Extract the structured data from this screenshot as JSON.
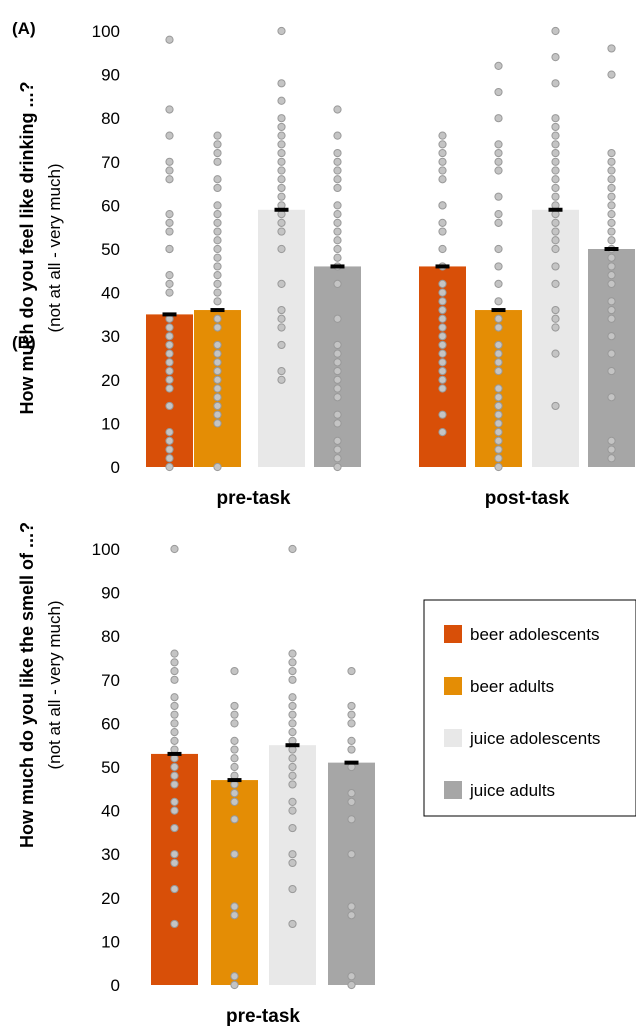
{
  "colors": {
    "beer_adolescents": "#d84f08",
    "beer_adults": "#e48d05",
    "juice_adolescents": "#e8e8e8",
    "juice_adults": "#a6a6a6",
    "dot_fill": "#c4c4c4",
    "dot_stroke": "#999999",
    "mean_bar": "#000000"
  },
  "legend": {
    "items": [
      {
        "label": "beer adolescents",
        "color_key": "beer_adolescents"
      },
      {
        "label": "beer adults",
        "color_key": "beer_adults"
      },
      {
        "label": "juice adolescents",
        "color_key": "juice_adolescents"
      },
      {
        "label": "juice adults",
        "color_key": "juice_adults"
      }
    ]
  },
  "chart_data": [
    {
      "type": "bar",
      "panel_label": "(A)",
      "ylabel": "How much do you feel like drinking ...?",
      "ylabel_sub": "(not at all - very much)",
      "ylim": [
        0,
        100
      ],
      "yticks": [
        0,
        10,
        20,
        30,
        40,
        50,
        60,
        70,
        80,
        90,
        100
      ],
      "categories": [
        "pre-task",
        "post-task"
      ],
      "series": [
        {
          "name": "beer adolescents",
          "color_key": "beer_adolescents",
          "values": [
            35,
            46
          ],
          "points": [
            [
              0,
              2,
              4,
              6,
              8,
              14,
              18,
              20,
              22,
              24,
              26,
              28,
              30,
              32,
              34,
              40,
              42,
              44,
              50,
              50,
              54,
              56,
              58,
              66,
              68,
              70,
              76,
              82,
              98
            ],
            [
              8,
              12,
              18,
              20,
              22,
              24,
              26,
              28,
              30,
              32,
              34,
              36,
              38,
              40,
              42,
              46,
              50,
              54,
              56,
              60,
              60,
              66,
              68,
              70,
              72,
              74,
              76
            ]
          ]
        },
        {
          "name": "beer adults",
          "color_key": "beer_adults",
          "values": [
            36,
            36
          ],
          "points": [
            [
              0,
              10,
              12,
              14,
              16,
              18,
              20,
              22,
              24,
              26,
              28,
              32,
              34,
              38,
              40,
              42,
              44,
              46,
              48,
              50,
              52,
              54,
              56,
              58,
              60,
              64,
              66,
              70,
              72,
              74,
              76
            ],
            [
              0,
              2,
              4,
              6,
              8,
              10,
              12,
              14,
              16,
              18,
              22,
              24,
              26,
              28,
              32,
              34,
              38,
              42,
              46,
              50,
              56,
              58,
              62,
              68,
              70,
              72,
              74,
              80,
              86,
              92
            ]
          ]
        },
        {
          "name": "juice adolescents",
          "color_key": "juice_adolescents",
          "values": [
            59,
            59
          ],
          "points": [
            [
              20,
              22,
              28,
              32,
              34,
              36,
              42,
              50,
              54,
              56,
              58,
              60,
              62,
              64,
              66,
              68,
              70,
              72,
              74,
              76,
              78,
              80,
              84,
              88,
              100
            ],
            [
              14,
              26,
              32,
              34,
              36,
              42,
              46,
              50,
              52,
              54,
              56,
              58,
              60,
              62,
              64,
              66,
              68,
              70,
              72,
              74,
              76,
              78,
              80,
              88,
              94,
              100
            ]
          ]
        },
        {
          "name": "juice adults",
          "color_key": "juice_adults",
          "values": [
            46,
            50
          ],
          "points": [
            [
              0,
              2,
              4,
              6,
              10,
              12,
              16,
              18,
              20,
              22,
              24,
              26,
              28,
              34,
              42,
              46,
              48,
              50,
              52,
              54,
              56,
              58,
              60,
              64,
              66,
              68,
              70,
              72,
              76,
              82
            ],
            [
              2,
              4,
              6,
              16,
              22,
              26,
              30,
              34,
              36,
              38,
              42,
              44,
              46,
              48,
              50,
              52,
              54,
              56,
              58,
              60,
              62,
              64,
              66,
              68,
              70,
              72,
              90,
              96
            ]
          ]
        }
      ]
    },
    {
      "type": "bar",
      "panel_label": "(B)",
      "ylabel": "How much do you like the smell of ...?",
      "ylabel_sub": "(not at all - very much)",
      "ylim": [
        0,
        100
      ],
      "yticks": [
        0,
        10,
        20,
        30,
        40,
        50,
        60,
        70,
        80,
        90,
        100
      ],
      "categories": [
        "pre-task"
      ],
      "series": [
        {
          "name": "beer adolescents",
          "color_key": "beer_adolescents",
          "values": [
            53
          ],
          "points": [
            [
              14,
              22,
              28,
              30,
              36,
              40,
              42,
              46,
              48,
              50,
              52,
              54,
              56,
              58,
              60,
              62,
              64,
              66,
              70,
              72,
              74,
              76,
              100
            ]
          ]
        },
        {
          "name": "beer adults",
          "color_key": "beer_adults",
          "values": [
            47
          ],
          "points": [
            [
              0,
              2,
              16,
              18,
              30,
              38,
              42,
              44,
              46,
              48,
              50,
              52,
              54,
              56,
              60,
              62,
              64,
              72
            ]
          ]
        },
        {
          "name": "juice adolescents",
          "color_key": "juice_adolescents",
          "values": [
            55
          ],
          "points": [
            [
              14,
              22,
              28,
              30,
              36,
              40,
              42,
              46,
              48,
              50,
              52,
              54,
              56,
              58,
              60,
              62,
              64,
              66,
              70,
              72,
              74,
              76,
              100
            ]
          ]
        },
        {
          "name": "juice adults",
          "color_key": "juice_adults",
          "values": [
            51
          ],
          "points": [
            [
              0,
              2,
              16,
              18,
              30,
              38,
              42,
              44,
              50,
              54,
              56,
              60,
              62,
              64,
              72
            ]
          ]
        }
      ]
    }
  ]
}
